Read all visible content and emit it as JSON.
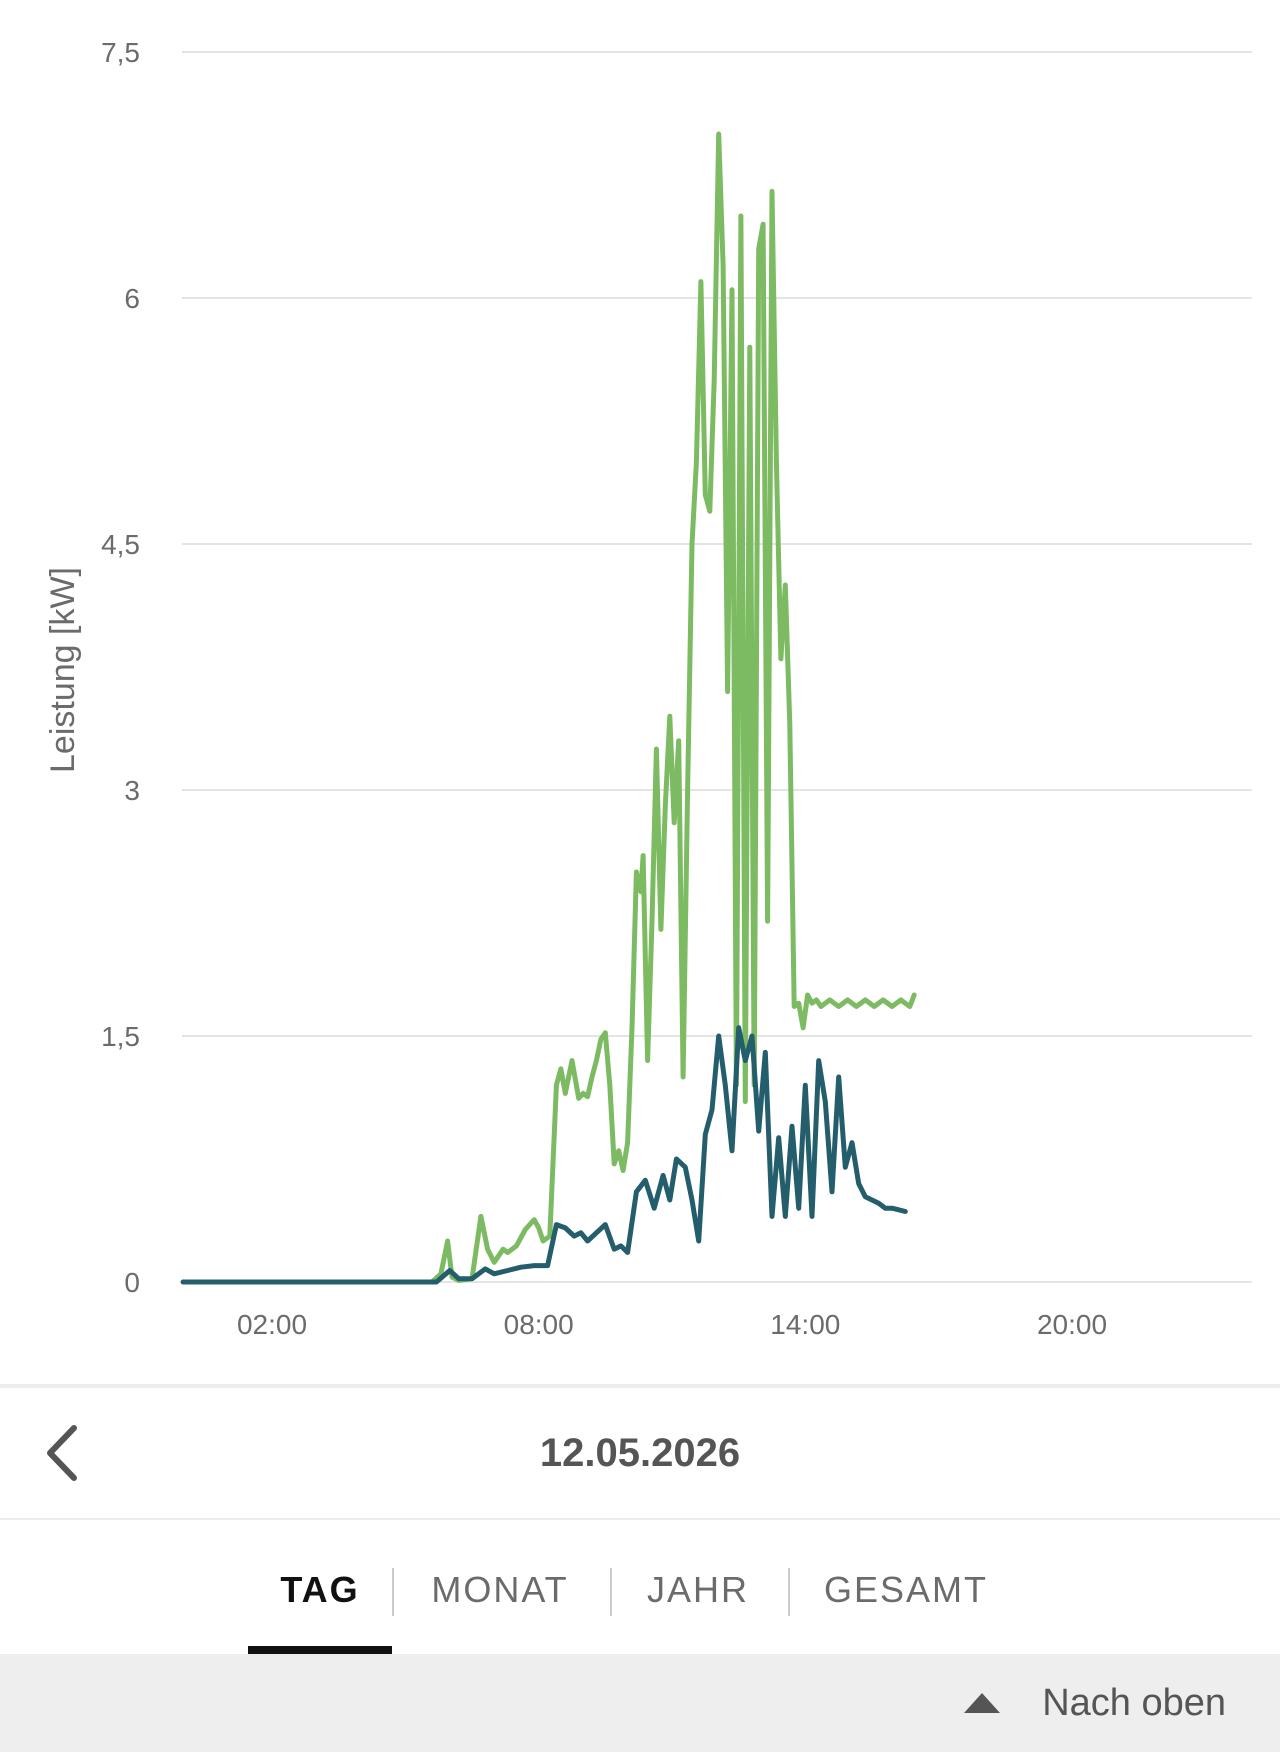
{
  "chart_data": {
    "type": "line",
    "title": "",
    "xlabel": "",
    "ylabel": "Leistung [kW]",
    "ylim": [
      0,
      7.5
    ],
    "xlim_hours": [
      0,
      24
    ],
    "y_ticks": [
      "0",
      "1,5",
      "3",
      "4,5",
      "6",
      "7,5"
    ],
    "y_tick_values": [
      0,
      1.5,
      3,
      4.5,
      6,
      7.5
    ],
    "x_ticks": [
      "02:00",
      "08:00",
      "14:00",
      "20:00"
    ],
    "x_tick_values": [
      2,
      8,
      14,
      20
    ],
    "grid": "horizontal",
    "legend": "none",
    "series": [
      {
        "color": "#7dbb62",
        "x": [
          0,
          5.6,
          5.8,
          5.95,
          6.05,
          6.2,
          6.5,
          6.7,
          6.85,
          7.0,
          7.2,
          7.3,
          7.5,
          7.7,
          7.9,
          8.0,
          8.1,
          8.25,
          8.4,
          8.5,
          8.6,
          8.75,
          8.9,
          9.0,
          9.1,
          9.2,
          9.3,
          9.4,
          9.5,
          9.6,
          9.7,
          9.8,
          9.9,
          10.0,
          10.1,
          10.2,
          10.3,
          10.35,
          10.45,
          10.55,
          10.65,
          10.75,
          10.85,
          10.95,
          11.05,
          11.15,
          11.25,
          11.35,
          11.45,
          11.55,
          11.65,
          11.75,
          11.85,
          11.95,
          12.05,
          12.15,
          12.25,
          12.35,
          12.45,
          12.55,
          12.65,
          12.75,
          12.85,
          12.95,
          13.05,
          13.15,
          13.25,
          13.35,
          13.45,
          13.55,
          13.65,
          13.75,
          13.85,
          13.95,
          14.05,
          14.15,
          14.25,
          14.35,
          14.45,
          14.55,
          14.65,
          14.75,
          14.85,
          14.95,
          15.05,
          15.15,
          15.25,
          15.35,
          15.45,
          15.55,
          15.65,
          15.75,
          15.85,
          15.95,
          16.05,
          16.15,
          16.25,
          16.35,
          16.45
        ],
        "values": [
          0,
          0,
          0.05,
          0.25,
          0.03,
          0.01,
          0.02,
          0.4,
          0.2,
          0.12,
          0.2,
          0.18,
          0.22,
          0.32,
          0.38,
          0.33,
          0.25,
          0.28,
          1.2,
          1.3,
          1.15,
          1.35,
          1.12,
          1.15,
          1.13,
          1.25,
          1.35,
          1.48,
          1.52,
          1.2,
          0.72,
          0.8,
          0.68,
          0.85,
          1.55,
          2.5,
          2.38,
          2.6,
          1.35,
          2.2,
          3.25,
          2.15,
          2.9,
          3.45,
          2.8,
          3.3,
          1.25,
          3.0,
          4.5,
          5.0,
          6.1,
          4.8,
          4.7,
          5.5,
          7.0,
          6.2,
          3.6,
          6.05,
          1.2,
          6.5,
          1.1,
          5.7,
          1.2,
          6.3,
          6.45,
          2.2,
          6.65,
          5.0,
          3.8,
          4.25,
          3.4,
          1.68,
          1.7,
          1.55,
          1.75,
          1.7,
          1.72,
          1.68,
          1.7,
          1.72,
          1.7,
          1.68,
          1.7,
          1.72,
          1.7,
          1.68,
          1.7,
          1.72,
          1.7,
          1.68,
          1.7,
          1.72,
          1.7,
          1.68,
          1.7,
          1.72,
          1.7,
          1.68,
          1.75
        ]
      },
      {
        "color": "#245e6d",
        "x": [
          0,
          5.7,
          6.0,
          6.2,
          6.5,
          6.8,
          7.0,
          7.3,
          7.6,
          7.9,
          8.2,
          8.4,
          8.6,
          8.8,
          8.95,
          9.1,
          9.3,
          9.5,
          9.7,
          9.85,
          10.0,
          10.2,
          10.4,
          10.6,
          10.8,
          10.95,
          11.1,
          11.3,
          11.45,
          11.6,
          11.75,
          11.9,
          12.05,
          12.2,
          12.35,
          12.5,
          12.65,
          12.8,
          12.95,
          13.1,
          13.25,
          13.4,
          13.55,
          13.7,
          13.85,
          14.0,
          14.15,
          14.3,
          14.45,
          14.6,
          14.75,
          14.9,
          15.05,
          15.2,
          15.35,
          15.5,
          15.65,
          15.8,
          15.95,
          16.1,
          16.25
        ],
        "values": [
          0,
          0,
          0.07,
          0.02,
          0.02,
          0.08,
          0.05,
          0.07,
          0.09,
          0.1,
          0.1,
          0.35,
          0.33,
          0.28,
          0.3,
          0.25,
          0.3,
          0.35,
          0.2,
          0.22,
          0.18,
          0.55,
          0.62,
          0.45,
          0.65,
          0.5,
          0.75,
          0.7,
          0.5,
          0.25,
          0.9,
          1.05,
          1.5,
          1.2,
          0.8,
          1.55,
          1.35,
          1.5,
          0.92,
          1.4,
          0.4,
          0.88,
          0.4,
          0.95,
          0.45,
          1.2,
          0.4,
          1.35,
          1.1,
          0.55,
          1.25,
          0.7,
          0.85,
          0.6,
          0.52,
          0.5,
          0.48,
          0.45,
          0.45,
          0.44,
          0.43
        ]
      }
    ]
  },
  "navigation": {
    "date": "12.05.2026",
    "prev_icon": "chevron-left-icon"
  },
  "tabs": [
    {
      "label": "TAG",
      "active": true
    },
    {
      "label": "MONAT",
      "active": false
    },
    {
      "label": "JAHR",
      "active": false
    },
    {
      "label": "GESAMT",
      "active": false
    }
  ],
  "footer": {
    "back_to_top_label": "Nach oben",
    "back_to_top_icon": "triangle-up-icon"
  },
  "colors": {
    "generation": "#7dbb62",
    "consumption": "#245e6d",
    "grid": "#e4e4e4",
    "footer_bg": "#eeeeee"
  }
}
